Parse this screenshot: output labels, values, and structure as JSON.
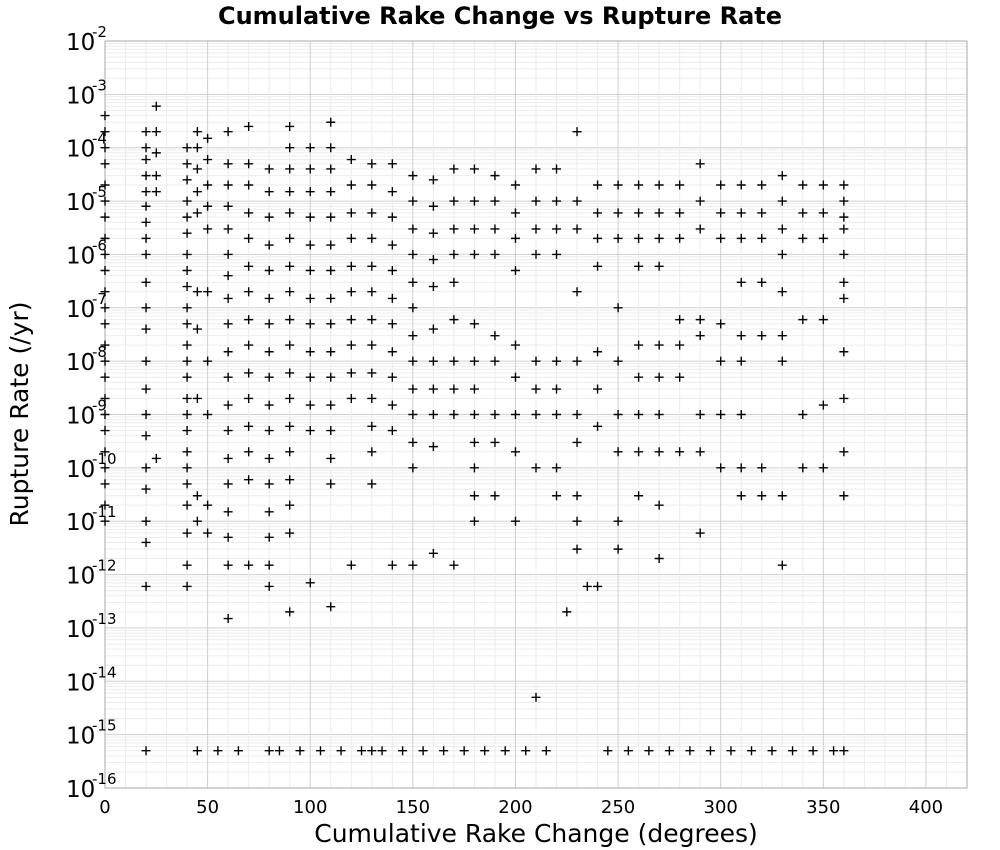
{
  "chart_data": {
    "type": "scatter",
    "title": "Cumulative Rake Change vs Rupture Rate",
    "xlabel": "Cumulative Rake Change (degrees)",
    "ylabel": "Rupture Rate (/yr)",
    "xlim": [
      0,
      420
    ],
    "ylim": [
      1e-16,
      0.01
    ],
    "yscale": "log",
    "xticks": [
      0,
      50,
      100,
      150,
      200,
      250,
      300,
      350,
      400
    ],
    "ytick_exponents": [
      -2,
      -3,
      -4,
      -5,
      -6,
      -7,
      -8,
      -9,
      -10,
      -11,
      -12,
      -13,
      -14,
      -15,
      -16
    ],
    "ytick_base": "10",
    "grid": true,
    "marker": "+",
    "color": "#000000",
    "series": [
      {
        "x": [
          0,
          0,
          0,
          0,
          0,
          0,
          0,
          0,
          0,
          0,
          0,
          0,
          0,
          0,
          0,
          0,
          0,
          0,
          0,
          0,
          0,
          0,
          0,
          0,
          20,
          20,
          20,
          20,
          20,
          20,
          20,
          20,
          20,
          20,
          20,
          20,
          20,
          20,
          20,
          20,
          20,
          20,
          20,
          20,
          20,
          20,
          25,
          25,
          25,
          25,
          25,
          25,
          40,
          40,
          40,
          40,
          40,
          40,
          40,
          40,
          40,
          40,
          40,
          40,
          40,
          40,
          40,
          40,
          40,
          40,
          40,
          40,
          40,
          40,
          40,
          40,
          45,
          45,
          45,
          45,
          45,
          45,
          45,
          45,
          45,
          45,
          50,
          50,
          50,
          50,
          50,
          50,
          50,
          50,
          50,
          50,
          60,
          60,
          60,
          60,
          60,
          60,
          60,
          60,
          60,
          60,
          60,
          60,
          60,
          60,
          60,
          60,
          60,
          60,
          60,
          70,
          70,
          70,
          70,
          70,
          70,
          70,
          70,
          70,
          70,
          70,
          70,
          70,
          70,
          70,
          80,
          80,
          80,
          80,
          80,
          80,
          80,
          80,
          80,
          80,
          80,
          80,
          80,
          80,
          80,
          80,
          80,
          80,
          90,
          90,
          90,
          90,
          90,
          90,
          90,
          90,
          90,
          90,
          90,
          90,
          90,
          90,
          90,
          90,
          90,
          90,
          100,
          100,
          100,
          100,
          100,
          100,
          100,
          100,
          100,
          100,
          100,
          100,
          100,
          110,
          110,
          110,
          110,
          110,
          110,
          110,
          110,
          110,
          110,
          110,
          110,
          110,
          110,
          110,
          110,
          120,
          120,
          120,
          120,
          120,
          120,
          120,
          120,
          120,
          120,
          120,
          130,
          130,
          130,
          130,
          130,
          130,
          130,
          130,
          130,
          130,
          130,
          130,
          130,
          140,
          140,
          140,
          140,
          140,
          140,
          140,
          140,
          140,
          140,
          140,
          140,
          150,
          150,
          150,
          150,
          150,
          150,
          150,
          150,
          150,
          150,
          150,
          150,
          150,
          160,
          160,
          160,
          160,
          160,
          160,
          160,
          160,
          160,
          160,
          160,
          170,
          170,
          170,
          170,
          170,
          170,
          170,
          170,
          170,
          170,
          180,
          180,
          180,
          180,
          180,
          180,
          180,
          180,
          180,
          180,
          180,
          180,
          190,
          190,
          190,
          190,
          190,
          190,
          190,
          190,
          190,
          200,
          200,
          200,
          200,
          200,
          200,
          200,
          200,
          200,
          210,
          210,
          210,
          210,
          210,
          210,
          210,
          210,
          220,
          220,
          220,
          220,
          220,
          220,
          220,
          220,
          220,
          230,
          230,
          230,
          230,
          230,
          230,
          230,
          230,
          230,
          230,
          240,
          240,
          240,
          240,
          240,
          240,
          240,
          240,
          250,
          250,
          250,
          250,
          250,
          250,
          250,
          250,
          250,
          260,
          260,
          260,
          260,
          260,
          260,
          260,
          260,
          260,
          270,
          270,
          270,
          270,
          270,
          270,
          270,
          270,
          270,
          270,
          280,
          280,
          280,
          280,
          280,
          280,
          280,
          290,
          290,
          290,
          290,
          290,
          290,
          290,
          290,
          300,
          300,
          300,
          300,
          300,
          300,
          300,
          310,
          310,
          310,
          310,
          310,
          310,
          310,
          310,
          310,
          320,
          320,
          320,
          320,
          320,
          320,
          320,
          330,
          330,
          330,
          330,
          330,
          330,
          330,
          330,
          330,
          340,
          340,
          340,
          340,
          340,
          340,
          350,
          350,
          350,
          350,
          350,
          350,
          360,
          360,
          360,
          360,
          360,
          360,
          360,
          360,
          360,
          360,
          360,
          360,
          210,
          235,
          225,
          130,
          65,
          165,
          45,
          55,
          85,
          95,
          105,
          115,
          125,
          135,
          145,
          155,
          175,
          185,
          195,
          205,
          215,
          245,
          255,
          265,
          275,
          285,
          295,
          305,
          315,
          325,
          335,
          345,
          355
        ],
        "y": [
          0.0004,
          0.0002,
          0.0001,
          5e-05,
          2e-05,
          1e-05,
          5e-06,
          2e-06,
          1e-06,
          5e-07,
          2e-07,
          1e-07,
          5e-08,
          2e-08,
          1e-08,
          5e-09,
          2e-09,
          1e-09,
          5e-10,
          2e-10,
          1e-10,
          5e-11,
          2e-11,
          1e-11,
          0.0002,
          0.0001,
          6e-05,
          3e-05,
          1.5e-05,
          8e-06,
          4e-06,
          2e-06,
          1e-06,
          3e-07,
          1e-07,
          4e-08,
          1e-08,
          3e-09,
          1e-09,
          4e-10,
          1e-10,
          4e-11,
          1e-11,
          4e-12,
          6e-13,
          5e-16,
          0.0006,
          0.0002,
          8e-05,
          3e-05,
          1.5e-05,
          1.5e-10,
          0.0001,
          5e-05,
          2.5e-05,
          1e-05,
          5e-06,
          2.5e-06,
          1e-06,
          5e-07,
          2.5e-07,
          1e-07,
          5e-08,
          2e-08,
          1e-08,
          5e-09,
          2e-09,
          1e-09,
          5e-10,
          2e-10,
          1e-10,
          5e-11,
          2e-11,
          6e-12,
          1.5e-12,
          6e-13,
          0.0002,
          0.0001,
          4e-05,
          1.5e-05,
          6e-06,
          2e-07,
          4e-08,
          2e-09,
          3e-11,
          1e-11,
          0.00015,
          6e-05,
          2e-05,
          8e-06,
          3e-06,
          2e-07,
          1e-08,
          1e-09,
          2e-11,
          6e-12,
          0.0002,
          5e-05,
          2e-05,
          8e-06,
          3e-06,
          1e-06,
          4e-07,
          1.5e-07,
          5e-08,
          1.5e-08,
          5e-09,
          1.5e-09,
          5e-10,
          1.5e-10,
          5e-11,
          1.5e-11,
          5e-12,
          1.5e-12,
          1.5e-13,
          0.00025,
          5e-05,
          2e-05,
          6e-06,
          2e-06,
          6e-07,
          2e-07,
          6e-08,
          2e-08,
          6e-09,
          2e-09,
          6e-10,
          2e-10,
          6e-11,
          1.5e-12,
          4e-05,
          1.5e-05,
          5e-06,
          1.5e-06,
          5e-07,
          1.5e-07,
          5e-08,
          1.5e-08,
          5e-09,
          1.5e-09,
          5e-10,
          1.5e-10,
          5e-11,
          1.5e-11,
          5e-12,
          1.5e-12,
          6e-13,
          5e-16,
          0.00025,
          0.0001,
          4e-05,
          1.5e-05,
          6e-06,
          2e-06,
          6e-07,
          2e-07,
          6e-08,
          2e-08,
          6e-09,
          2e-09,
          6e-10,
          2e-10,
          6e-11,
          2e-11,
          6e-12,
          2e-13,
          0.0001,
          4e-05,
          1.5e-05,
          5e-06,
          1.5e-06,
          5e-07,
          1.5e-07,
          5e-08,
          1.5e-08,
          5e-09,
          1.5e-09,
          5e-10,
          7e-13,
          0.0003,
          0.0001,
          4e-05,
          1.5e-05,
          5e-06,
          1.5e-06,
          5e-07,
          1.5e-07,
          5e-08,
          1.5e-08,
          5e-09,
          1.5e-09,
          5e-10,
          1.5e-10,
          5e-11,
          2.5e-13,
          6e-05,
          2e-05,
          6e-06,
          2e-06,
          6e-07,
          2e-07,
          6e-08,
          2e-08,
          6e-09,
          2e-09,
          1.5e-12,
          5e-05,
          2e-05,
          6e-06,
          2e-06,
          6e-07,
          2e-07,
          6e-08,
          2e-08,
          6e-09,
          2e-09,
          6e-10,
          2e-10,
          5e-11,
          5e-05,
          1.5e-05,
          5e-06,
          1.5e-06,
          5e-07,
          1.5e-07,
          5e-08,
          1.5e-08,
          5e-09,
          1.5e-09,
          5e-10,
          1.5e-12,
          3e-05,
          1e-05,
          3e-06,
          1e-06,
          3e-07,
          1e-07,
          3e-08,
          1e-08,
          3e-09,
          1e-09,
          3e-10,
          1e-10,
          1.5e-12,
          2.5e-05,
          8e-06,
          2.5e-06,
          8e-07,
          2.5e-07,
          4e-08,
          1e-08,
          3e-09,
          1e-09,
          2.5e-10,
          2.5e-12,
          4e-05,
          1e-05,
          3e-06,
          1e-06,
          3e-07,
          6e-08,
          1e-08,
          3e-09,
          1e-09,
          1.5e-12,
          4e-05,
          1e-05,
          3e-06,
          1e-06,
          5e-08,
          1e-08,
          3e-09,
          1e-09,
          3e-10,
          1e-10,
          3e-11,
          1e-11,
          3e-05,
          1e-05,
          3e-06,
          1e-06,
          3e-08,
          1e-08,
          1e-09,
          3e-10,
          3e-11,
          2e-05,
          6e-06,
          2e-06,
          5e-07,
          2e-08,
          5e-09,
          1e-09,
          2e-10,
          1e-11,
          4e-05,
          1e-05,
          3e-06,
          1e-06,
          1e-08,
          3e-09,
          1e-09,
          1e-10,
          4e-05,
          1e-05,
          3e-06,
          1e-06,
          1e-08,
          3e-09,
          1e-09,
          1e-10,
          3e-11,
          0.0002,
          1e-05,
          3e-06,
          2e-07,
          1e-08,
          1e-09,
          3e-10,
          3e-11,
          1e-11,
          3e-12,
          2e-05,
          6e-06,
          2e-06,
          6e-07,
          1.5e-08,
          3e-09,
          6e-10,
          6e-13,
          2e-05,
          6e-06,
          2e-06,
          1e-07,
          1e-08,
          1e-09,
          2e-10,
          3e-12,
          1e-11,
          2e-05,
          6e-06,
          2e-06,
          6e-07,
          2e-08,
          5e-09,
          1e-09,
          2e-10,
          3e-11,
          2e-05,
          6e-06,
          2e-06,
          6e-07,
          2e-08,
          5e-09,
          1e-09,
          2e-10,
          2e-11,
          2e-12,
          2e-05,
          6e-06,
          2e-06,
          6e-08,
          2e-08,
          5e-09,
          2e-10,
          5e-05,
          1e-05,
          3e-06,
          6e-08,
          3e-08,
          1e-09,
          2e-10,
          6e-12,
          2e-05,
          6e-06,
          2e-06,
          5e-08,
          1e-08,
          1e-09,
          1e-10,
          2e-05,
          6e-06,
          2e-06,
          3e-07,
          3e-08,
          1e-08,
          1e-09,
          1e-10,
          3e-11,
          2e-05,
          6e-06,
          2e-06,
          3e-07,
          3e-08,
          1e-10,
          3e-11,
          3e-05,
          1e-05,
          3e-06,
          1e-06,
          2e-07,
          3e-08,
          1e-08,
          3e-11,
          1.5e-12,
          2e-05,
          6e-06,
          2e-06,
          6e-08,
          1e-09,
          1e-10,
          2e-05,
          6e-06,
          2e-06,
          6e-08,
          1.5e-09,
          1e-10,
          2e-05,
          1e-05,
          5e-06,
          3e-06,
          1e-06,
          3e-07,
          1.5e-07,
          1.5e-08,
          2e-09,
          2e-10,
          3e-11,
          5e-16,
          5e-15,
          6e-13,
          2e-13,
          5e-16,
          5e-16,
          5e-16,
          5e-16,
          5e-16,
          5e-16,
          5e-16,
          5e-16,
          5e-16,
          5e-16,
          5e-16,
          5e-16,
          5e-16,
          5e-16,
          5e-16,
          5e-16,
          5e-16,
          5e-16,
          5e-16,
          5e-16,
          5e-16,
          5e-16,
          5e-16,
          5e-16,
          5e-16,
          5e-16,
          5e-16,
          5e-16,
          5e-16,
          5e-16
        ]
      }
    ]
  }
}
